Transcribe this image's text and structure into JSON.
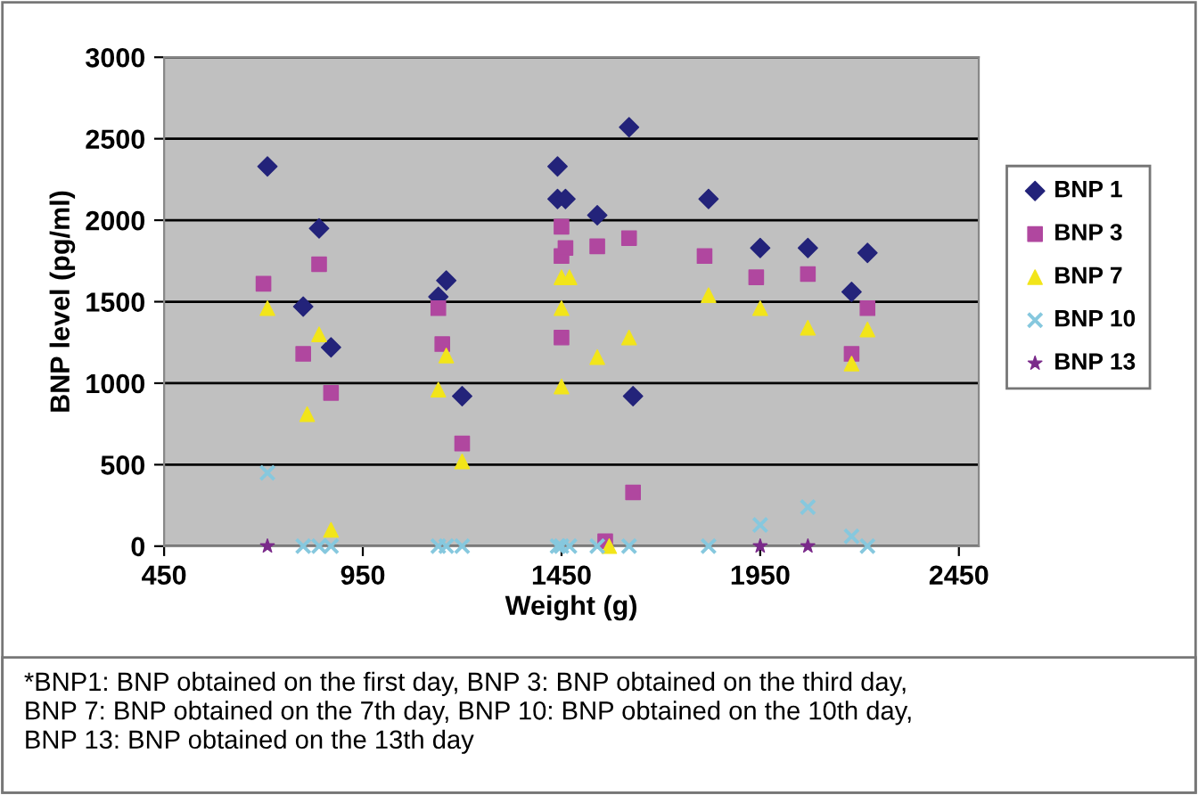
{
  "chart_data": {
    "type": "scatter",
    "xlabel": "Weight (g)",
    "ylabel": "BNP level (pg/ml)",
    "xlim": [
      450,
      2500
    ],
    "xticks": [
      450,
      950,
      1450,
      1950,
      2450
    ],
    "ylim": [
      0,
      3000
    ],
    "yticks": [
      0,
      500,
      1000,
      1500,
      2000,
      2500,
      3000
    ],
    "grid": "y",
    "legend": "right",
    "series": [
      {
        "name": "BNP 1",
        "color": "#23237a",
        "marker": "diamond",
        "x": [
          710,
          800,
          840,
          870,
          1140,
          1160,
          1200,
          1440,
          1440,
          1460,
          1540,
          1620,
          1630,
          1820,
          1950,
          2070,
          2180,
          2220
        ],
        "values": [
          2330,
          1470,
          1950,
          1220,
          1530,
          1630,
          920,
          2330,
          2130,
          2130,
          2030,
          2570,
          920,
          2130,
          1830,
          1830,
          1560,
          1800
        ]
      },
      {
        "name": "BNP 3",
        "color": "#b0479f",
        "marker": "square",
        "x": [
          700,
          800,
          840,
          870,
          1140,
          1150,
          1200,
          1450,
          1450,
          1460,
          1450,
          1540,
          1620,
          1630,
          1560,
          1810,
          1940,
          2070,
          2180,
          2220
        ],
        "values": [
          1610,
          1180,
          1730,
          940,
          1460,
          1240,
          630,
          1960,
          1780,
          1830,
          1280,
          1840,
          1890,
          330,
          30,
          1780,
          1650,
          1670,
          1180,
          1460
        ]
      },
      {
        "name": "BNP 7",
        "color": "#f2e51a",
        "marker": "triangle",
        "x": [
          710,
          810,
          840,
          870,
          1140,
          1160,
          1200,
          1450,
          1470,
          1450,
          1450,
          1540,
          1620,
          1570,
          1820,
          1950,
          2070,
          2180,
          2220
        ],
        "values": [
          1460,
          810,
          1300,
          100,
          960,
          1170,
          520,
          1650,
          1650,
          1460,
          980,
          1160,
          1280,
          0,
          1540,
          1460,
          1340,
          1120,
          1330
        ]
      },
      {
        "name": "BNP 10",
        "color": "#86c8de",
        "marker": "cross",
        "x": [
          710,
          800,
          840,
          870,
          1140,
          1160,
          1200,
          1440,
          1450,
          1470,
          1540,
          1620,
          1820,
          1950,
          2070,
          2180,
          2220
        ],
        "values": [
          450,
          0,
          0,
          0,
          0,
          0,
          0,
          0,
          0,
          0,
          0,
          0,
          0,
          130,
          240,
          60,
          0
        ]
      },
      {
        "name": "BNP 13",
        "color": "#7a2a8a",
        "marker": "star",
        "x": [
          710,
          1950,
          2070
        ],
        "values": [
          0,
          0,
          0
        ]
      }
    ],
    "annotations": [
      "*BNP1: BNP obtained on the first day, BNP 3: BNP obtained on the third day,\nBNP 7: BNP obtained on the 7th day, BNP 10: BNP obtained on the 10th day,\nBNP 13: BNP obtained on the 13th day"
    ]
  }
}
